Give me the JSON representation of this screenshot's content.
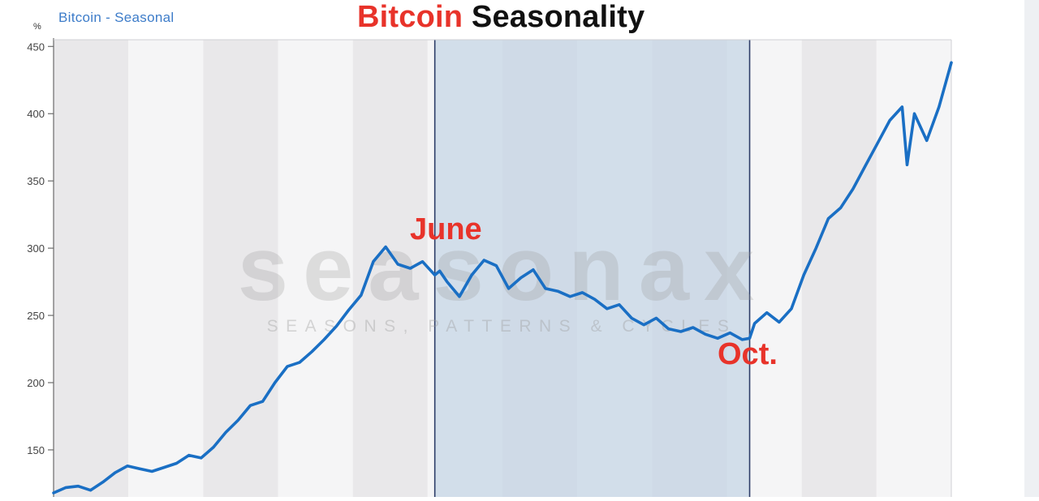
{
  "header": {
    "series_legend": "Bitcoin - Seasonal",
    "unit": "%",
    "title_part1": "Bitcoin",
    "title_part2": " Seasonality"
  },
  "watermark": {
    "brand": "seasonax",
    "tagline": "SEASONS, PATTERNS & CYCLES"
  },
  "callouts": {
    "peak": "June",
    "trough": "Oct."
  },
  "colors": {
    "line": "#1a6fc4",
    "highlight": "#c6d6e6",
    "title_accent": "#e8332a",
    "callout": "#e8332a",
    "band_dark": "#e9e8ea",
    "band_light": "#f5f5f6"
  },
  "chart_data": {
    "type": "line",
    "title": "Bitcoin Seasonality",
    "ylabel": "%",
    "ylim": [
      115,
      455
    ],
    "yticks": [
      150,
      200,
      250,
      300,
      350,
      400,
      450
    ],
    "xlim": [
      0,
      365
    ],
    "highlight_range": [
      155,
      283
    ],
    "x": [
      0,
      5,
      10,
      15,
      20,
      25,
      30,
      35,
      40,
      45,
      50,
      55,
      60,
      65,
      70,
      75,
      80,
      85,
      90,
      95,
      100,
      105,
      110,
      115,
      120,
      125,
      130,
      135,
      140,
      145,
      150,
      155,
      157,
      160,
      165,
      170,
      175,
      180,
      185,
      190,
      195,
      200,
      205,
      210,
      215,
      220,
      225,
      230,
      235,
      240,
      245,
      250,
      255,
      260,
      265,
      270,
      275,
      280,
      283,
      285,
      290,
      295,
      300,
      305,
      310,
      315,
      320,
      325,
      330,
      335,
      340,
      345,
      347,
      350,
      355,
      360,
      365
    ],
    "values": [
      118,
      122,
      123,
      120,
      126,
      133,
      138,
      136,
      134,
      137,
      140,
      146,
      144,
      152,
      163,
      172,
      183,
      186,
      200,
      212,
      215,
      223,
      232,
      242,
      254,
      265,
      290,
      301,
      288,
      285,
      290,
      280,
      283,
      275,
      264,
      280,
      291,
      287,
      270,
      278,
      284,
      270,
      268,
      264,
      267,
      262,
      255,
      258,
      248,
      243,
      248,
      240,
      238,
      241,
      236,
      233,
      237,
      232,
      233,
      244,
      252,
      245,
      255,
      280,
      300,
      322,
      330,
      344,
      361,
      378,
      395,
      405,
      362,
      400,
      380,
      405,
      438
    ]
  }
}
